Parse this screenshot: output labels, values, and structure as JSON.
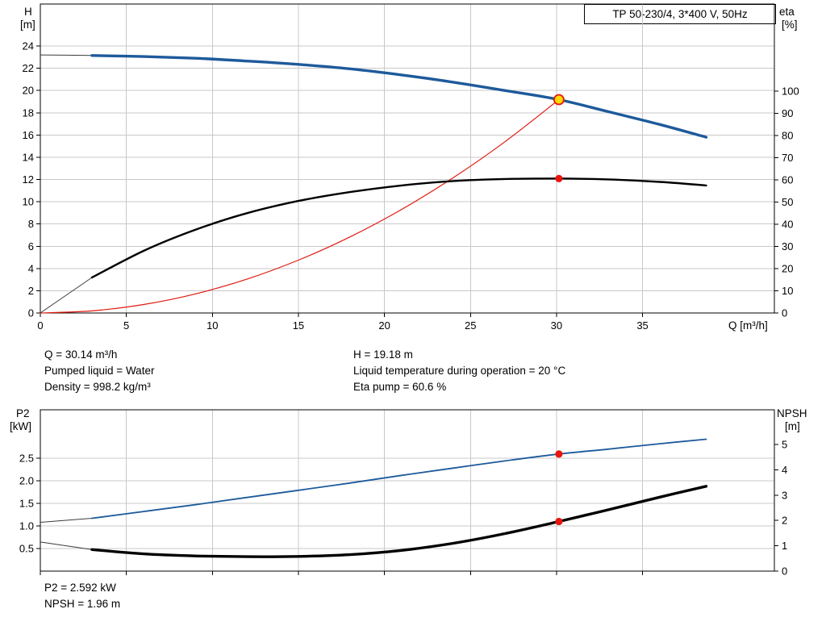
{
  "colors": {
    "background": "#ffffff",
    "grid": "#c8c8c8",
    "axis": "#000000",
    "curve_blue": "#1d5a9b",
    "curve_black": "#000000",
    "curve_red": "#e01a10",
    "lead_gray": "#3c3c3c",
    "marker_red": "#e8150d",
    "marker_yellow": "#ffd800"
  },
  "info_top": {
    "left": [
      "Q = 30.14 m³/h",
      "Pumped liquid = Water",
      "Density = 998.2 kg/m³"
    ],
    "right": [
      "H = 19.18 m",
      "Liquid temperature during operation = 20 °C",
      "Eta pump = 60.6 %"
    ]
  },
  "info_bottom": [
    "P2 = 2.592 kW",
    "NPSH = 1.96 m"
  ],
  "chart_data": [
    {
      "type": "line",
      "title": "TP 50-230/4, 3*400 V, 50Hz",
      "x_axis": {
        "label": "Q [m³/h]",
        "min": 0,
        "max": 42.7,
        "ticks": [
          0,
          5,
          10,
          15,
          20,
          25,
          30,
          35
        ],
        "tick_labels": [
          "0",
          "5",
          "10",
          "15",
          "20",
          "25",
          "30",
          "35"
        ]
      },
      "y_left": {
        "label_lines": [
          "H",
          "[m]"
        ],
        "min": 0,
        "max": 27.8,
        "ticks": [
          0,
          2,
          4,
          6,
          8,
          10,
          12,
          14,
          16,
          18,
          20,
          22,
          24
        ],
        "tick_labels": [
          "0",
          "2",
          "4",
          "6",
          "8",
          "10",
          "12",
          "14",
          "16",
          "18",
          "20",
          "22",
          "24"
        ]
      },
      "y_right": {
        "label_lines": [
          "eta",
          "[%]"
        ],
        "min": 0,
        "max": 139,
        "ticks": [
          0,
          10,
          20,
          30,
          40,
          50,
          60,
          70,
          80,
          90,
          100
        ],
        "tick_labels": [
          "0",
          "10",
          "20",
          "30",
          "40",
          "50",
          "60",
          "70",
          "80",
          "90",
          "100"
        ]
      },
      "series": [
        {
          "name": "system-curve",
          "axis": "left",
          "color": "#e01a10",
          "width": 1.2,
          "points": [
            [
              0,
              0
            ],
            [
              3,
              0.19
            ],
            [
              6,
              0.76
            ],
            [
              9,
              1.71
            ],
            [
              12,
              3.04
            ],
            [
              15,
              4.75
            ],
            [
              18,
              6.84
            ],
            [
              21,
              9.31
            ],
            [
              24,
              12.16
            ],
            [
              27,
              15.39
            ],
            [
              30.14,
              19.18
            ]
          ]
        },
        {
          "name": "eta-curve",
          "axis": "right",
          "color": "#000000",
          "width": 2.4,
          "thin_until": 3,
          "points": [
            [
              0,
              0
            ],
            [
              1.5,
              8
            ],
            [
              3,
              16
            ],
            [
              6,
              28
            ],
            [
              9,
              37.5
            ],
            [
              12,
              45
            ],
            [
              15,
              50.5
            ],
            [
              18,
              54.5
            ],
            [
              21,
              57.5
            ],
            [
              24,
              59.5
            ],
            [
              27,
              60.4
            ],
            [
              30.14,
              60.6
            ],
            [
              33,
              60.2
            ],
            [
              36,
              59.1
            ],
            [
              38.7,
              57.5
            ]
          ]
        },
        {
          "name": "hq-curve",
          "axis": "left",
          "color": "#1d5a9b",
          "width": 3.4,
          "thin_until": 3,
          "points": [
            [
              0,
              23.2
            ],
            [
              3,
              23.15
            ],
            [
              6,
              23.05
            ],
            [
              9,
              22.9
            ],
            [
              12,
              22.65
            ],
            [
              15,
              22.35
            ],
            [
              18,
              21.95
            ],
            [
              21,
              21.4
            ],
            [
              24,
              20.75
            ],
            [
              27,
              20.0
            ],
            [
              30.14,
              19.18
            ],
            [
              33,
              18.1
            ],
            [
              36,
              16.95
            ],
            [
              38.7,
              15.8
            ]
          ]
        }
      ],
      "markers": [
        {
          "name": "duty-point",
          "q": 30.14,
          "v": 19.18,
          "axis": "left",
          "kind": "duty"
        },
        {
          "name": "eta-point",
          "q": 30.14,
          "v": 60.6,
          "axis": "right",
          "kind": "dot"
        }
      ]
    },
    {
      "type": "line",
      "x_axis": {
        "label": "",
        "min": 0,
        "max": 42.7,
        "ticks": [
          0,
          5,
          10,
          15,
          20,
          25,
          30,
          35
        ],
        "tick_labels": []
      },
      "y_left": {
        "label_lines": [
          "P2",
          "[kW]"
        ],
        "min": 0,
        "max": 3.57,
        "ticks": [
          0.5,
          1.0,
          1.5,
          2.0,
          2.5
        ],
        "tick_labels": [
          "0.5",
          "1.0",
          "1.5",
          "2.0",
          "2.5"
        ]
      },
      "y_right": {
        "label_lines": [
          "NPSH",
          "[m]"
        ],
        "min": 0,
        "max": 6.37,
        "ticks": [
          0,
          1,
          2,
          3,
          4,
          5
        ],
        "tick_labels": [
          "0",
          "1",
          "2",
          "3",
          "4",
          "5"
        ]
      },
      "series": [
        {
          "name": "p2-curve",
          "axis": "left",
          "color": "#1d5a9b",
          "width": 1.8,
          "thin_until": 3,
          "points": [
            [
              0,
              1.08
            ],
            [
              3,
              1.17
            ],
            [
              6,
              1.32
            ],
            [
              9,
              1.47
            ],
            [
              12,
              1.63
            ],
            [
              15,
              1.79
            ],
            [
              18,
              1.95
            ],
            [
              21,
              2.12
            ],
            [
              24,
              2.28
            ],
            [
              27,
              2.44
            ],
            [
              30.14,
              2.592
            ],
            [
              33,
              2.7
            ],
            [
              36,
              2.82
            ],
            [
              38.7,
              2.92
            ]
          ]
        },
        {
          "name": "npsh-curve",
          "axis": "right",
          "color": "#000000",
          "width": 3.4,
          "thin_until": 3,
          "points": [
            [
              0,
              1.15
            ],
            [
              3,
              0.85
            ],
            [
              6,
              0.68
            ],
            [
              9,
              0.6
            ],
            [
              12,
              0.57
            ],
            [
              15,
              0.58
            ],
            [
              18,
              0.65
            ],
            [
              21,
              0.82
            ],
            [
              24,
              1.1
            ],
            [
              27,
              1.48
            ],
            [
              30.14,
              1.96
            ],
            [
              33,
              2.42
            ],
            [
              36,
              2.92
            ],
            [
              38.7,
              3.35
            ]
          ]
        }
      ],
      "markers": [
        {
          "name": "p2-point",
          "q": 30.14,
          "v": 2.592,
          "axis": "left",
          "kind": "dot"
        },
        {
          "name": "npsh-point",
          "q": 30.14,
          "v": 1.96,
          "axis": "right",
          "kind": "dot"
        }
      ]
    }
  ]
}
